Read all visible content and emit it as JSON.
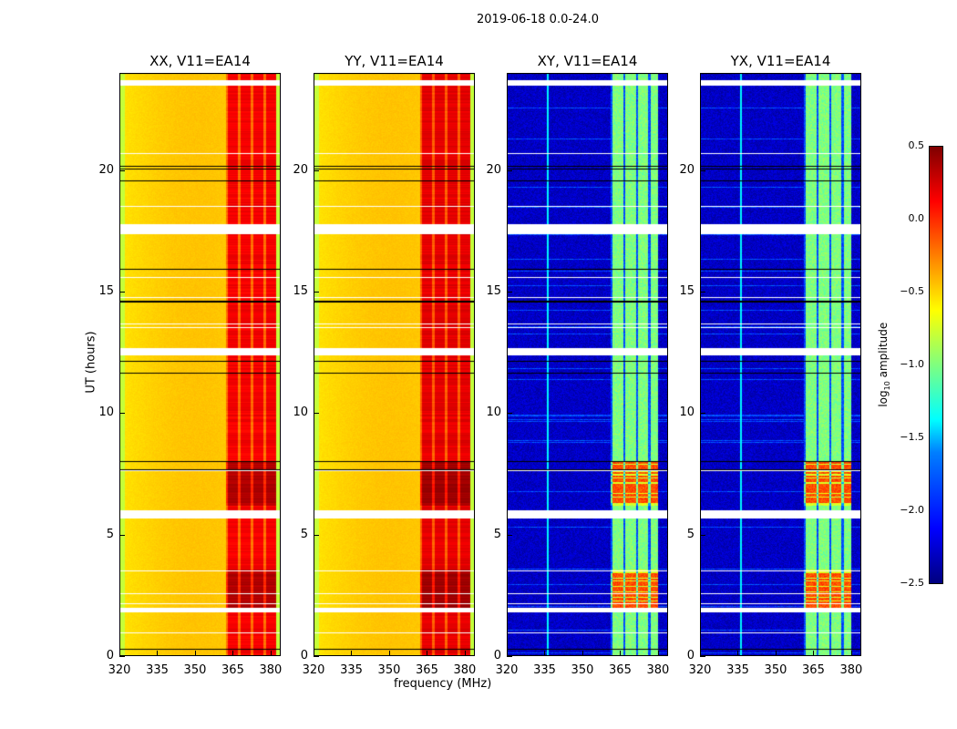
{
  "figure": {
    "suptitle": "2019-06-18 0.0-24.0",
    "xlabel": "frequency (MHz)",
    "ylabel": "UT (hours)"
  },
  "chart_data": {
    "type": "heatmap",
    "title": "2019-06-18 0.0-24.0",
    "xlabel": "frequency (MHz)",
    "ylabel": "UT (hours)",
    "xlim": [
      320,
      384
    ],
    "ylim": [
      0,
      24
    ],
    "xticks": [
      "320",
      "335",
      "350",
      "365",
      "380"
    ],
    "yticks": [
      "0",
      "5",
      "10",
      "15",
      "20"
    ],
    "panels": [
      {
        "title": "XX, V11=EA14",
        "kind": "parallel",
        "background_log10_amp": -0.55,
        "band_mhz": [
          362,
          382
        ],
        "band_log10_amp": 0.15
      },
      {
        "title": "YY, V11=EA14",
        "kind": "parallel",
        "background_log10_amp": -0.55,
        "band_mhz": [
          362,
          382
        ],
        "band_log10_amp": 0.2
      },
      {
        "title": "XY, V11=EA14",
        "kind": "cross",
        "background_log10_amp": -2.3,
        "band_mhz": [
          361,
          380
        ],
        "band_log10_amp": -1.0
      },
      {
        "title": "YX, V11=EA14",
        "kind": "cross",
        "background_log10_amp": -2.3,
        "band_mhz": [
          361,
          380
        ],
        "band_log10_amp": -1.0
      }
    ],
    "bright_time_ranges_h": [
      [
        2.0,
        3.6
      ],
      [
        6.2,
        8.0
      ]
    ],
    "flagged_time_ranges_h": [
      [
        23.5,
        23.7
      ],
      [
        17.4,
        17.7
      ],
      [
        12.4,
        12.7
      ],
      [
        5.7,
        6.0
      ],
      [
        1.8,
        2.0
      ]
    ],
    "colorbar": {
      "label": "log10 amplitude",
      "label_main": "log",
      "label_sub": "10",
      "label_rest": " amplitude",
      "range": [
        -2.5,
        0.5
      ],
      "ticks": [
        "0.5",
        "0.0",
        "−0.5",
        "−1.0",
        "−1.5",
        "−2.0",
        "−2.5"
      ],
      "colormap": "jet"
    }
  }
}
